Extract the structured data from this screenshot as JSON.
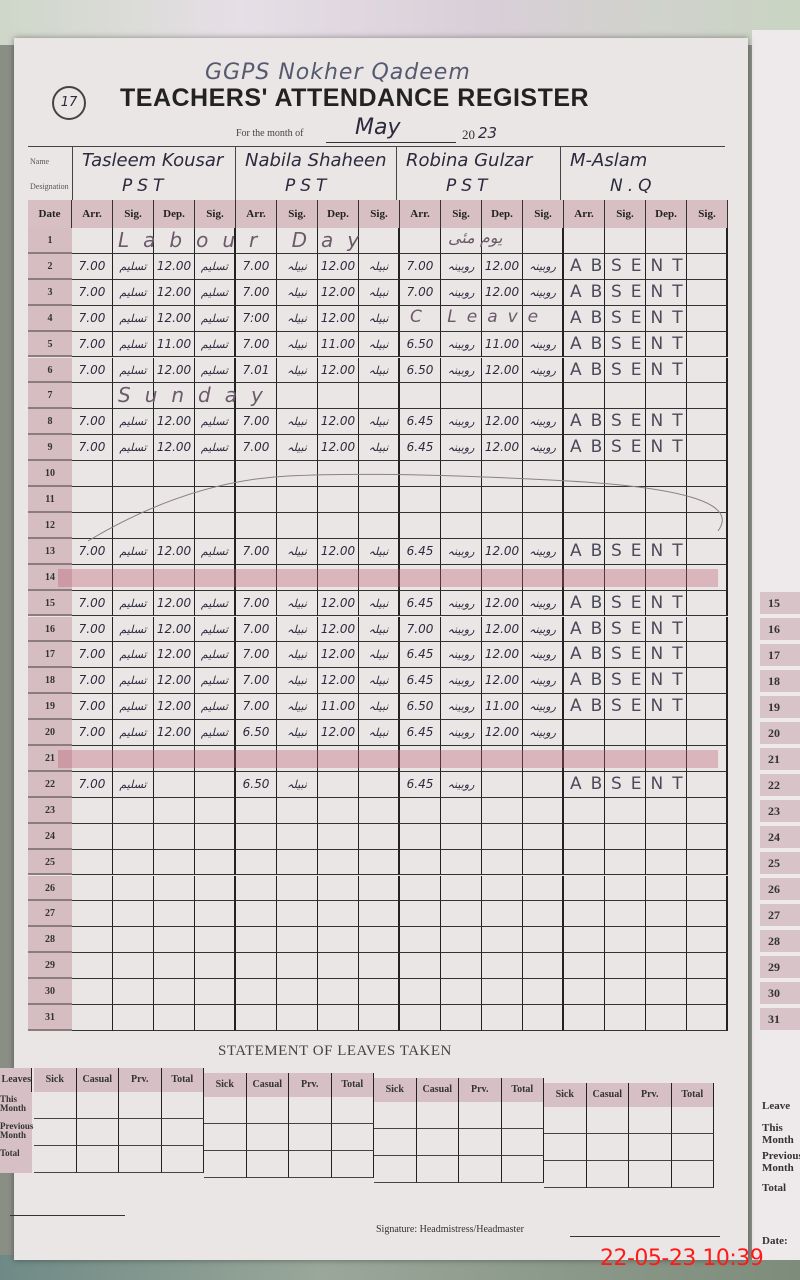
{
  "header": {
    "school": "GGPS Nokher Qadeem",
    "register_number": "17",
    "title": "TEACHERS' ATTENDANCE REGISTER",
    "month_label": "For the month of",
    "month": "May",
    "year_prefix": "20",
    "year_suffix": "23",
    "name_label": "Name",
    "designation_label": "Designation"
  },
  "columns": {
    "date": "Date",
    "arrival": "Arr.",
    "signature": "Sig.",
    "departure": "Dep."
  },
  "teachers": [
    {
      "name": "Tasleem Kousar",
      "designation": "PST",
      "signature": "تسلیم"
    },
    {
      "name": "Nabila Shaheen",
      "designation": "PST",
      "signature": "نبیلہ"
    },
    {
      "name": "Robina Gulzar",
      "designation": "PST",
      "signature": "روبینہ"
    },
    {
      "name": "M-Aslam",
      "designation": "N.Q",
      "signature": ""
    }
  ],
  "absent_text": "ABSENT",
  "rows": [
    {
      "date": "1",
      "note": "Labour Day",
      "note_urdu": "یوم مئی"
    },
    {
      "date": "2",
      "t": [
        [
          "7.00",
          "12.00"
        ],
        [
          "7.00",
          "12.00"
        ],
        [
          "7.00",
          "12.00"
        ]
      ],
      "absent": true
    },
    {
      "date": "3",
      "t": [
        [
          "7.00",
          "12.00"
        ],
        [
          "7.00",
          "12.00"
        ],
        [
          "7.00",
          "12.00"
        ]
      ],
      "absent": true
    },
    {
      "date": "4",
      "t": [
        [
          "7.00",
          "12.00"
        ],
        [
          "7:00",
          "12.00"
        ],
        null
      ],
      "leave": "C Leave",
      "absent": true
    },
    {
      "date": "5",
      "t": [
        [
          "7.00",
          "11.00"
        ],
        [
          "7.00",
          "11.00"
        ],
        [
          "6.50",
          "11.00"
        ]
      ],
      "absent": true
    },
    {
      "date": "6",
      "t": [
        [
          "7.00",
          "12.00"
        ],
        [
          "7.01",
          "12.00"
        ],
        [
          "6.50",
          "12.00"
        ]
      ],
      "absent": true
    },
    {
      "date": "7",
      "note": "Sunday"
    },
    {
      "date": "8",
      "t": [
        [
          "7.00",
          "12.00"
        ],
        [
          "7.00",
          "12.00"
        ],
        [
          "6.45",
          "12.00"
        ]
      ],
      "absent": true
    },
    {
      "date": "9",
      "t": [
        [
          "7.00",
          "12.00"
        ],
        [
          "7.00",
          "12.00"
        ],
        [
          "6.45",
          "12.00"
        ]
      ],
      "absent": true
    },
    {
      "date": "10"
    },
    {
      "date": "11"
    },
    {
      "date": "12"
    },
    {
      "date": "13",
      "t": [
        [
          "7.00",
          "12.00"
        ],
        [
          "7.00",
          "12.00"
        ],
        [
          "6.45",
          "12.00"
        ]
      ],
      "absent": true
    },
    {
      "date": "14",
      "struck": true
    },
    {
      "date": "15",
      "t": [
        [
          "7.00",
          "12.00"
        ],
        [
          "7.00",
          "12.00"
        ],
        [
          "6.45",
          "12.00"
        ]
      ],
      "absent": true
    },
    {
      "date": "16",
      "t": [
        [
          "7.00",
          "12.00"
        ],
        [
          "7.00",
          "12.00"
        ],
        [
          "7.00",
          "12.00"
        ]
      ],
      "absent": true
    },
    {
      "date": "17",
      "t": [
        [
          "7.00",
          "12.00"
        ],
        [
          "7.00",
          "12.00"
        ],
        [
          "6.45",
          "12.00"
        ]
      ],
      "absent": true
    },
    {
      "date": "18",
      "t": [
        [
          "7.00",
          "12.00"
        ],
        [
          "7.00",
          "12.00"
        ],
        [
          "6.45",
          "12.00"
        ]
      ],
      "absent": true
    },
    {
      "date": "19",
      "t": [
        [
          "7.00",
          "12.00"
        ],
        [
          "7.00",
          "11.00"
        ],
        [
          "6.50",
          "11.00"
        ]
      ],
      "absent": true
    },
    {
      "date": "20",
      "t": [
        [
          "7.00",
          "12.00"
        ],
        [
          "6.50",
          "12.00"
        ],
        [
          "6.45",
          "12.00"
        ]
      ]
    },
    {
      "date": "21",
      "struck": true
    },
    {
      "date": "22",
      "t": [
        [
          "7.00",
          ""
        ],
        [
          "6.50",
          ""
        ],
        [
          "6.45",
          ""
        ]
      ],
      "absent": true
    },
    {
      "date": "23"
    },
    {
      "date": "24"
    },
    {
      "date": "25"
    },
    {
      "date": "26"
    },
    {
      "date": "27"
    },
    {
      "date": "28"
    },
    {
      "date": "29"
    },
    {
      "date": "30"
    },
    {
      "date": "31"
    }
  ],
  "leaves": {
    "title": "STATEMENT OF LEAVES TAKEN",
    "corner": "Leaves",
    "headers": [
      "Sick",
      "Casual",
      "Prv.",
      "Total"
    ],
    "row_labels": [
      "This Month",
      "Previous Month",
      "Total"
    ]
  },
  "footer": {
    "signature_label": "Signature: Headmistress/Headmaster",
    "timestamp": "22-05-23  10:39"
  },
  "side_page": {
    "dates": [
      "15",
      "16",
      "17",
      "18",
      "19",
      "20",
      "21",
      "22",
      "23",
      "24",
      "25",
      "26",
      "27",
      "28",
      "29",
      "30",
      "31"
    ],
    "labels": [
      "Leave",
      "This Month",
      "Previous Month",
      "Total",
      "Date:"
    ]
  },
  "colors": {
    "paper": "#ebe6e6",
    "header_fill": "#d7bfc4",
    "ink": "#2b2b3d",
    "timestamp": "#ff1a1a"
  }
}
